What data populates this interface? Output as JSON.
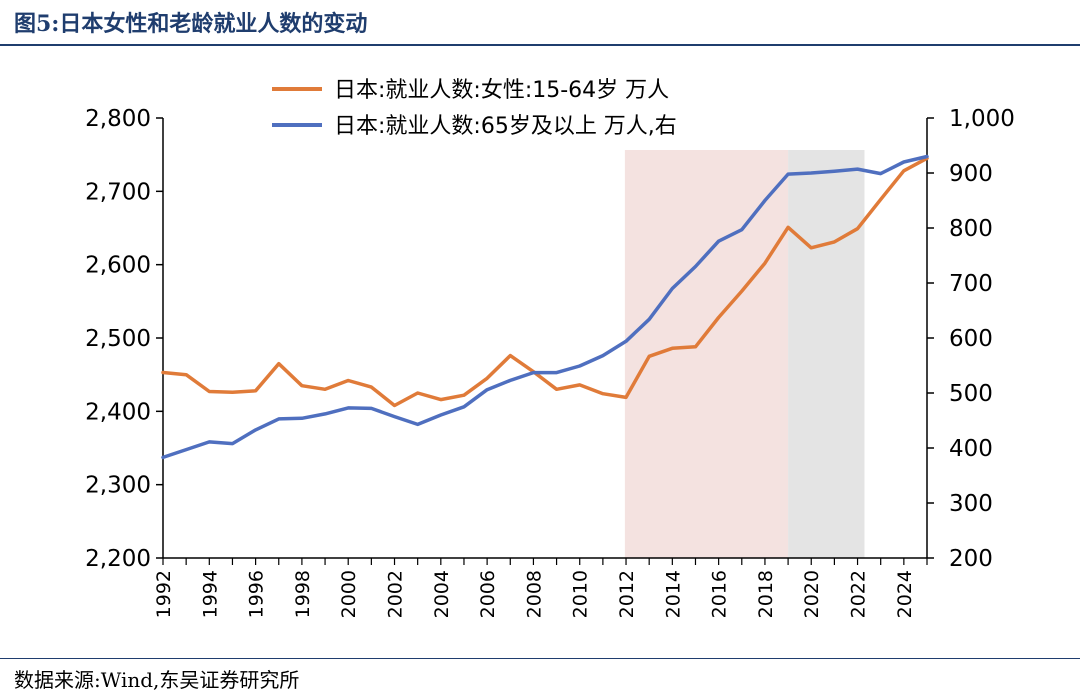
{
  "header": {
    "title": "图5:日本女性和老龄就业人数的变动"
  },
  "footer": {
    "source": "数据来源:Wind,东吴证券研究所"
  },
  "chart_data": {
    "type": "line",
    "x": [
      1992,
      1993,
      1994,
      1995,
      1996,
      1997,
      1998,
      1999,
      2000,
      2001,
      2002,
      2003,
      2004,
      2005,
      2006,
      2007,
      2008,
      2009,
      2010,
      2011,
      2012,
      2013,
      2014,
      2015,
      2016,
      2017,
      2018,
      2019,
      2020,
      2021,
      2022,
      2023,
      2024,
      2025
    ],
    "series": [
      {
        "name": "日本:就业人数:女性:15-64岁 万人",
        "axis": "left",
        "color": "#e07b39",
        "values": [
          2453,
          2450,
          2427,
          2426,
          2428,
          2465,
          2435,
          2430,
          2442,
          2433,
          2408,
          2425,
          2416,
          2422,
          2445,
          2476,
          2454,
          2430,
          2436,
          2424,
          2419,
          2475,
          2486,
          2488,
          2528,
          2564,
          2602,
          2651,
          2623,
          2631,
          2649,
          2689,
          2728,
          2745
        ]
      },
      {
        "name": "日本:就业人数:65岁及以上 万人,右",
        "axis": "right",
        "color": "#4f6fbf",
        "values": [
          383,
          397,
          411,
          408,
          433,
          453,
          454,
          462,
          473,
          472,
          457,
          443,
          460,
          475,
          506,
          523,
          537,
          537,
          549,
          568,
          594,
          634,
          690,
          730,
          776,
          797,
          850,
          898,
          900,
          903,
          907,
          899,
          920,
          930
        ]
      }
    ],
    "y_left": {
      "min": 2200,
      "max": 2800,
      "ticks": [
        "2,200",
        "2,300",
        "2,400",
        "2,500",
        "2,600",
        "2,700",
        "2,800"
      ]
    },
    "y_right": {
      "min": 200,
      "max": 1000,
      "ticks": [
        "200",
        "300",
        "400",
        "500",
        "600",
        "700",
        "800",
        "900",
        "1,000"
      ]
    },
    "x_tick_labels": [
      "1992",
      "1994",
      "1996",
      "1998",
      "2000",
      "2002",
      "2004",
      "2006",
      "2008",
      "2010",
      "2012",
      "2014",
      "2016",
      "2018",
      "2020",
      "2022",
      "2024"
    ],
    "shaded_regions": [
      {
        "from": 2011.95,
        "to": 2019.0,
        "color": "#f4e2e0"
      },
      {
        "from": 2019.0,
        "to": 2022.3,
        "color": "#e4e4e4"
      }
    ],
    "legend_position": "top"
  }
}
